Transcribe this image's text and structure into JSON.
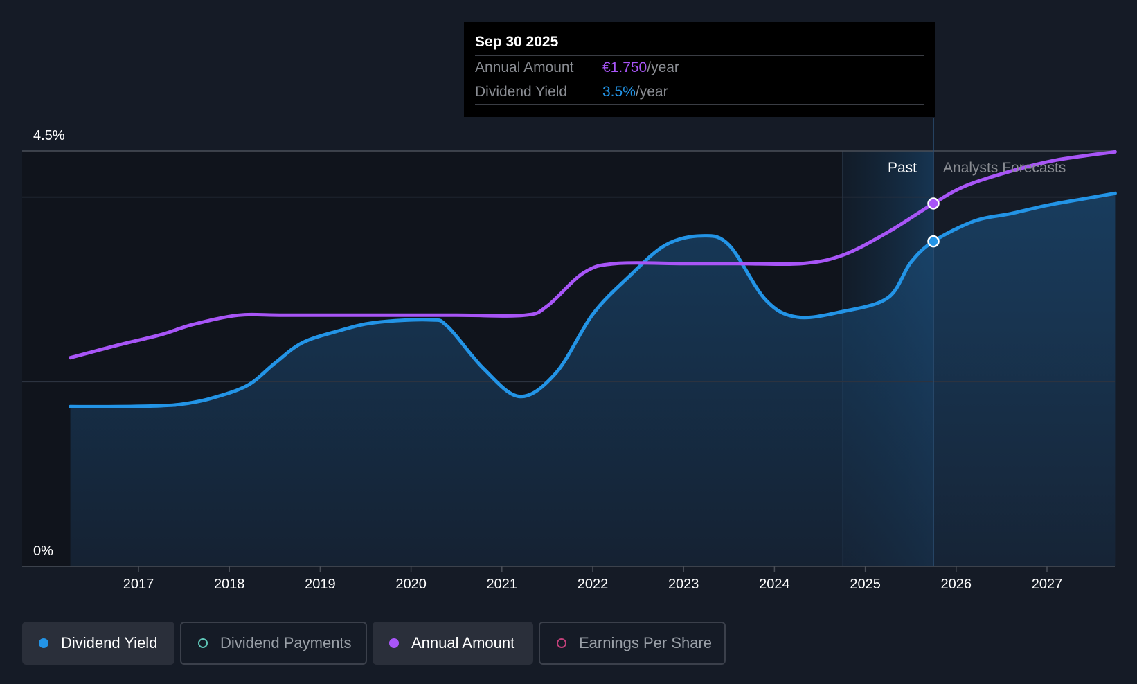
{
  "chart_data": {
    "type": "line",
    "y_axis": {
      "label_top": "4.5%",
      "label_bottom": "0%",
      "ylim": [
        0,
        4.5
      ]
    },
    "x_ticks": [
      "2017",
      "2018",
      "2019",
      "2020",
      "2021",
      "2022",
      "2023",
      "2024",
      "2025",
      "2026",
      "2027"
    ],
    "region_labels": {
      "past": "Past",
      "forecast": "Analysts Forecasts"
    },
    "series": [
      {
        "name": "Dividend Yield",
        "color": "#2394e6",
        "area": true,
        "points": [
          [
            2016.25,
            1.73
          ],
          [
            2016.75,
            1.73
          ],
          [
            2017.25,
            1.74
          ],
          [
            2017.5,
            1.76
          ],
          [
            2017.8,
            1.82
          ],
          [
            2018.2,
            1.96
          ],
          [
            2018.5,
            2.2
          ],
          [
            2018.8,
            2.42
          ],
          [
            2019.2,
            2.55
          ],
          [
            2019.6,
            2.64
          ],
          [
            2020.2,
            2.67
          ],
          [
            2020.4,
            2.6
          ],
          [
            2020.8,
            2.14
          ],
          [
            2021.2,
            1.84
          ],
          [
            2021.6,
            2.1
          ],
          [
            2022.0,
            2.73
          ],
          [
            2022.4,
            3.14
          ],
          [
            2022.8,
            3.48
          ],
          [
            2023.2,
            3.58
          ],
          [
            2023.5,
            3.48
          ],
          [
            2023.9,
            2.89
          ],
          [
            2024.25,
            2.7
          ],
          [
            2024.75,
            2.76
          ],
          [
            2025.25,
            2.91
          ],
          [
            2025.5,
            3.29
          ],
          [
            2025.75,
            3.52
          ],
          [
            2026.2,
            3.74
          ],
          [
            2026.6,
            3.82
          ],
          [
            2027.0,
            3.91
          ],
          [
            2027.4,
            3.98
          ],
          [
            2027.75,
            4.04
          ]
        ]
      },
      {
        "name": "Annual Amount",
        "color": "#a855f7",
        "area": false,
        "points": [
          [
            2016.25,
            2.26
          ],
          [
            2016.75,
            2.39
          ],
          [
            2017.25,
            2.51
          ],
          [
            2017.6,
            2.62
          ],
          [
            2018.1,
            2.72
          ],
          [
            2018.6,
            2.72
          ],
          [
            2019.5,
            2.72
          ],
          [
            2020.5,
            2.72
          ],
          [
            2021.25,
            2.72
          ],
          [
            2021.5,
            2.82
          ],
          [
            2021.9,
            3.18
          ],
          [
            2022.25,
            3.28
          ],
          [
            2023.0,
            3.28
          ],
          [
            2023.6,
            3.28
          ],
          [
            2024.3,
            3.28
          ],
          [
            2024.75,
            3.37
          ],
          [
            2025.25,
            3.62
          ],
          [
            2025.75,
            3.93
          ],
          [
            2026.1,
            4.12
          ],
          [
            2026.6,
            4.28
          ],
          [
            2027.1,
            4.4
          ],
          [
            2027.75,
            4.49
          ]
        ]
      }
    ],
    "highlight": {
      "x": 2025.75,
      "yield": 3.52,
      "amount": 3.93
    },
    "grid": "horizontal"
  },
  "tooltip": {
    "date": "Sep 30 2025",
    "annual_amount_label": "Annual Amount",
    "annual_amount_value": "€1.750",
    "annual_amount_unit": "/year",
    "yield_label": "Dividend Yield",
    "yield_value": "3.5%",
    "yield_unit": "/year"
  },
  "legend": [
    {
      "label": "Dividend Yield",
      "color": "#2394e6",
      "filled": true,
      "active": true
    },
    {
      "label": "Dividend Payments",
      "color": "#5ec4b6",
      "filled": false,
      "active": false
    },
    {
      "label": "Annual Amount",
      "color": "#a855f7",
      "filled": true,
      "active": true
    },
    {
      "label": "Earnings Per Share",
      "color": "#c2417a",
      "filled": false,
      "active": false
    }
  ]
}
